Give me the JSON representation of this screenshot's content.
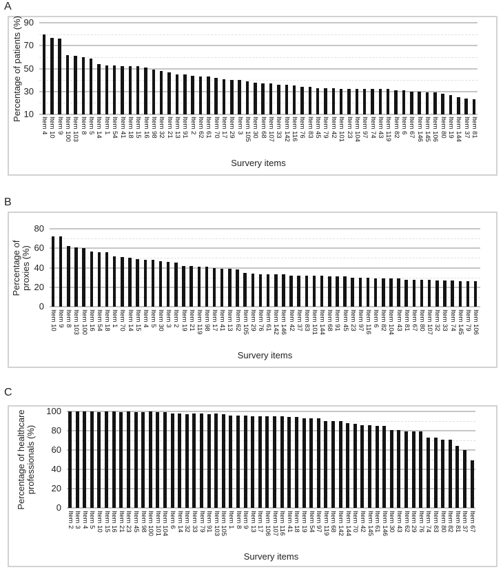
{
  "figure_xlabel": "Survery items",
  "style": {
    "bar_color": "#141414",
    "grid_major_color": "#c5c5c5",
    "grid_minor_color": "#dfdfdf",
    "box_border_color": "#d2d2d2",
    "text_color": "#1a1a1a"
  },
  "chart_data": [
    {
      "type": "bar",
      "panel_label": "A",
      "xlabel": "Survery items",
      "ylabel": "Percentage of patients (%)",
      "ylabel_lines": [
        "Percentage of patients (%)"
      ],
      "ylim": [
        10,
        90
      ],
      "yticks": [
        90,
        70,
        50,
        30,
        10
      ],
      "grid": "horizontal",
      "legend": "none",
      "categories": [
        "Item 4",
        "Item 10",
        "Item 9",
        "Item 100",
        "Item 103",
        "Item 8",
        "Item 5",
        "Item 14",
        "Item 1",
        "Item 54",
        "Item 41",
        "Item 18",
        "Item 15",
        "Item 16",
        "Item 98",
        "Item 32",
        "Item 21",
        "Item 13",
        "Item 91",
        "Item 2",
        "Item 62",
        "Item 61",
        "Item 70",
        "Item 17",
        "Item 29",
        "Item 3",
        "Item 105",
        "Item 30",
        "Item 68",
        "Item 107",
        "Item 33",
        "Item 142",
        "Item 116",
        "Item 76",
        "Item 83",
        "Item 45",
        "Item 79",
        "Item 42",
        "Item 101",
        "Item 23",
        "Item 104",
        "Item 97",
        "Item 74",
        "Item 43",
        "Item 119",
        "Item 82",
        "Item 6",
        "Item 67",
        "Item 146",
        "Item 145",
        "Item 106",
        "Item 80",
        "Item 19",
        "Item 144",
        "Item 37",
        "Item 81"
      ],
      "values": [
        80,
        77,
        76,
        62,
        61,
        60,
        59,
        54,
        53,
        53,
        52,
        52,
        52,
        51,
        49,
        48,
        47,
        45,
        45,
        44,
        43,
        43,
        42,
        41,
        40,
        40,
        39,
        38,
        37,
        37,
        36,
        36,
        35,
        34,
        34,
        33,
        33,
        33,
        32,
        32,
        32,
        32,
        32,
        32,
        32,
        31,
        31,
        30,
        30,
        29,
        29,
        28,
        27,
        25,
        24,
        23
      ]
    },
    {
      "type": "bar",
      "panel_label": "B",
      "xlabel": "Survery items",
      "ylabel": "Percentage of proxies (%)",
      "ylabel_lines": [
        "Percentage of",
        "proxies (%)"
      ],
      "ylim": [
        0,
        80
      ],
      "yticks": [
        80,
        60,
        40,
        20,
        0
      ],
      "grid": "horizontal",
      "legend": "none",
      "categories": [
        "Item 10",
        "Item 9",
        "Item 8",
        "Item 103",
        "Item 100",
        "Item 16",
        "Item 54",
        "Item 18",
        "Item 1",
        "Item 70",
        "Item 14",
        "Item 15",
        "Item 4",
        "Item 5",
        "Item 30",
        "Item 3",
        "Item 2",
        "Item 19",
        "Item 21",
        "Item 119",
        "Item 98",
        "Item 17",
        "Item 41",
        "Item 13",
        "Item 62",
        "Item 105",
        "Item 29",
        "Item 76",
        "Item 61",
        "Item 142",
        "Item 146",
        "Item 42",
        "Item 37",
        "Item 83",
        "Item 101",
        "Item 144",
        "Item 68",
        "Item 91",
        "Item 45",
        "Item 23",
        "Item 97",
        "Item 116",
        "Item 6",
        "Item 82",
        "Item 104",
        "Item 43",
        "Item 81",
        "Item 67",
        "Item 80",
        "Item 107",
        "Item 32",
        "Item 33",
        "Item 74",
        "Item 145",
        "Item 79",
        "Item 106"
      ],
      "values": [
        72,
        72,
        62,
        61,
        60,
        57,
        56,
        56,
        52,
        51,
        50,
        49,
        48,
        48,
        47,
        46,
        45,
        42,
        42,
        41,
        41,
        40,
        39,
        39,
        38,
        35,
        34,
        33,
        33,
        33,
        33,
        32,
        32,
        32,
        32,
        32,
        31,
        31,
        31,
        30,
        30,
        30,
        29,
        29,
        29,
        29,
        28,
        28,
        28,
        28,
        27,
        27,
        27,
        26,
        26,
        26
      ]
    },
    {
      "type": "bar",
      "panel_label": "C",
      "xlabel": "Survery items",
      "ylabel": "Percentage of healthcare professionals (%)",
      "ylabel_lines": [
        "Percentage of healthcare",
        "professionals (%)"
      ],
      "ylim": [
        0,
        100
      ],
      "yticks": [
        100,
        80,
        60,
        40,
        20,
        0
      ],
      "grid": "horizontal",
      "legend": "none",
      "categories": [
        "Item 2",
        "Item 3",
        "Item 4",
        "Item 5",
        "Item 10",
        "Item 15",
        "Item 16",
        "Item 21",
        "Item 23",
        "Item 45",
        "Item 98",
        "Item 100",
        "Item 101",
        "Item 104",
        "Item 6",
        "Item 14",
        "Item 32",
        "Item 33",
        "Item 79",
        "Item 91",
        "Item 103",
        "Item 105",
        "Item 1",
        "Item 8",
        "Item 9",
        "Item 13",
        "Item 17",
        "Item 106",
        "Item 107",
        "Item 116",
        "Item 41",
        "Item 18",
        "Item 19",
        "Item 54",
        "Item 97",
        "Item 119",
        "Item 68",
        "Item 142",
        "Item 144",
        "Item 70",
        "Item 42",
        "Item 145",
        "Item 61",
        "Item 146",
        "Item 30",
        "Item 43",
        "Item 62",
        "Item 29",
        "Item 76",
        "Item 74",
        "Item 83",
        "Item 80",
        "Item 82",
        "Item 81",
        "Item 37",
        "Item 67"
      ],
      "values": [
        100,
        100,
        100,
        100,
        99,
        100,
        100,
        99,
        100,
        99,
        99,
        100,
        99,
        99,
        98,
        98,
        97,
        98,
        98,
        97,
        98,
        97,
        96,
        96,
        96,
        95,
        95,
        95,
        95,
        95,
        94,
        94,
        93,
        93,
        93,
        90,
        90,
        90,
        88,
        87,
        86,
        86,
        85,
        85,
        81,
        81,
        79,
        79,
        79,
        73,
        73,
        71,
        71,
        64,
        60,
        49
      ]
    }
  ]
}
